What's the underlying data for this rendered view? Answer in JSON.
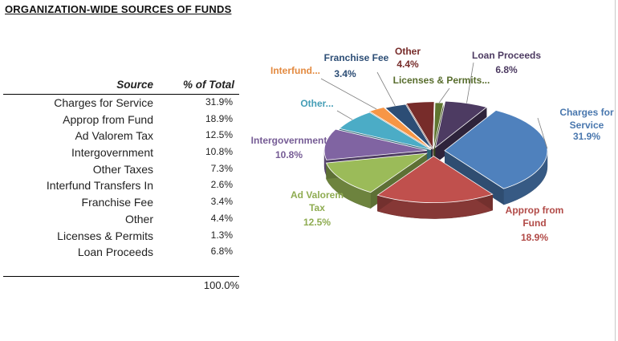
{
  "title": "ORGANIZATION-WIDE SOURCES OF FUNDS",
  "table": {
    "header_source": "Source",
    "header_pct": "% of Total",
    "rows": [
      {
        "source": "Charges for Service",
        "pct": "31.9%"
      },
      {
        "source": "Approp from Fund",
        "pct": "18.9%"
      },
      {
        "source": "Ad Valorem Tax",
        "pct": "12.5%"
      },
      {
        "source": "Intergovernment",
        "pct": "10.8%"
      },
      {
        "source": "Other Taxes",
        "pct": "7.3%"
      },
      {
        "source": "Interfund Transfers In",
        "pct": "2.6%"
      },
      {
        "source": "Franchise Fee",
        "pct": "3.4%"
      },
      {
        "source": "Other",
        "pct": "4.4%"
      },
      {
        "source": "Licenses & Permits",
        "pct": "1.3%"
      },
      {
        "source": "Loan Proceeds",
        "pct": "6.8%"
      }
    ],
    "total": "100.0%"
  },
  "chart_data": {
    "type": "pie",
    "title": "",
    "slices": [
      {
        "label": "Charges for Service",
        "display": "Charges for|Service",
        "value": 31.9,
        "value_label": "31.9%",
        "color": "#4f81bd"
      },
      {
        "label": "Approp from Fund",
        "display": "Approp from|Fund",
        "value": 18.9,
        "value_label": "18.9%",
        "color": "#c0504d"
      },
      {
        "label": "Ad Valorem Tax",
        "display": "Ad Valorem|Tax",
        "value": 12.5,
        "value_label": "12.5%",
        "color": "#9bbb59"
      },
      {
        "label": "Intergovernment",
        "display": "Intergovernment",
        "value": 10.8,
        "value_label": "10.8%",
        "color": "#8064a2"
      },
      {
        "label": "Other Taxes",
        "display": "Other...",
        "value": 7.3,
        "value_label": "",
        "color": "#4bacc6"
      },
      {
        "label": "Interfund Transfers In",
        "display": "Interfund...",
        "value": 2.6,
        "value_label": "",
        "color": "#f79646"
      },
      {
        "label": "Franchise Fee",
        "display": "Franchise Fee",
        "value": 3.4,
        "value_label": "3.4%",
        "color": "#2c4d75"
      },
      {
        "label": "Other",
        "display": "Other",
        "value": 4.4,
        "value_label": "4.4%",
        "color": "#772c2a"
      },
      {
        "label": "Licenses & Permits",
        "display": "Licenses & Permits...",
        "value": 1.3,
        "value_label": "",
        "color": "#5f7530"
      },
      {
        "label": "Loan Proceeds",
        "display": "Loan Proceeds",
        "value": 6.8,
        "value_label": "6.8%",
        "color": "#4d3b62"
      }
    ]
  }
}
